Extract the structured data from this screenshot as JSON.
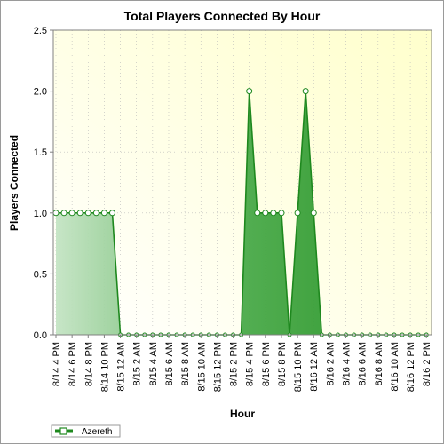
{
  "chart_data": {
    "type": "area",
    "title": "Total Players Connected By Hour",
    "xlabel": "Hour",
    "ylabel": "Players Connected",
    "ylim": [
      0,
      2.5
    ],
    "y_ticks": [
      "0.0",
      "0.5",
      "1.0",
      "1.5",
      "2.0",
      "2.5"
    ],
    "x_tick_labels": [
      "8/14 4 PM",
      "8/14 6 PM",
      "8/14 8 PM",
      "8/14 10 PM",
      "8/15 12 AM",
      "8/15 2 AM",
      "8/15 4 AM",
      "8/15 6 AM",
      "8/15 8 AM",
      "8/15 10 AM",
      "8/15 12 PM",
      "8/15 2 PM",
      "8/15 4 PM",
      "8/15 6 PM",
      "8/15 8 PM",
      "8/15 10 PM",
      "8/16 12 AM",
      "8/16 2 AM",
      "8/16 4 AM",
      "8/16 6 AM",
      "8/16 8 AM",
      "8/16 10 AM",
      "8/16 12 PM",
      "8/16 2 PM"
    ],
    "grid": true,
    "legend_position": "bottom-left",
    "series": [
      {
        "name": "Azereth",
        "color": "#2e9a2e",
        "values": [
          1,
          1,
          1,
          1,
          1,
          1,
          1,
          1,
          0,
          0,
          0,
          0,
          0,
          0,
          0,
          0,
          0,
          0,
          0,
          0,
          0,
          0,
          0,
          0,
          2,
          1,
          1,
          1,
          1,
          0,
          1,
          2,
          1,
          0,
          0,
          0,
          0,
          0,
          0,
          0,
          0,
          0,
          0,
          0,
          0,
          0,
          0
        ]
      }
    ]
  },
  "colors": {
    "plot_bg_left": "#ffffff",
    "plot_bg_right": "#ffffd0",
    "grid": "#b8b8b8",
    "line": "#1e881e"
  }
}
